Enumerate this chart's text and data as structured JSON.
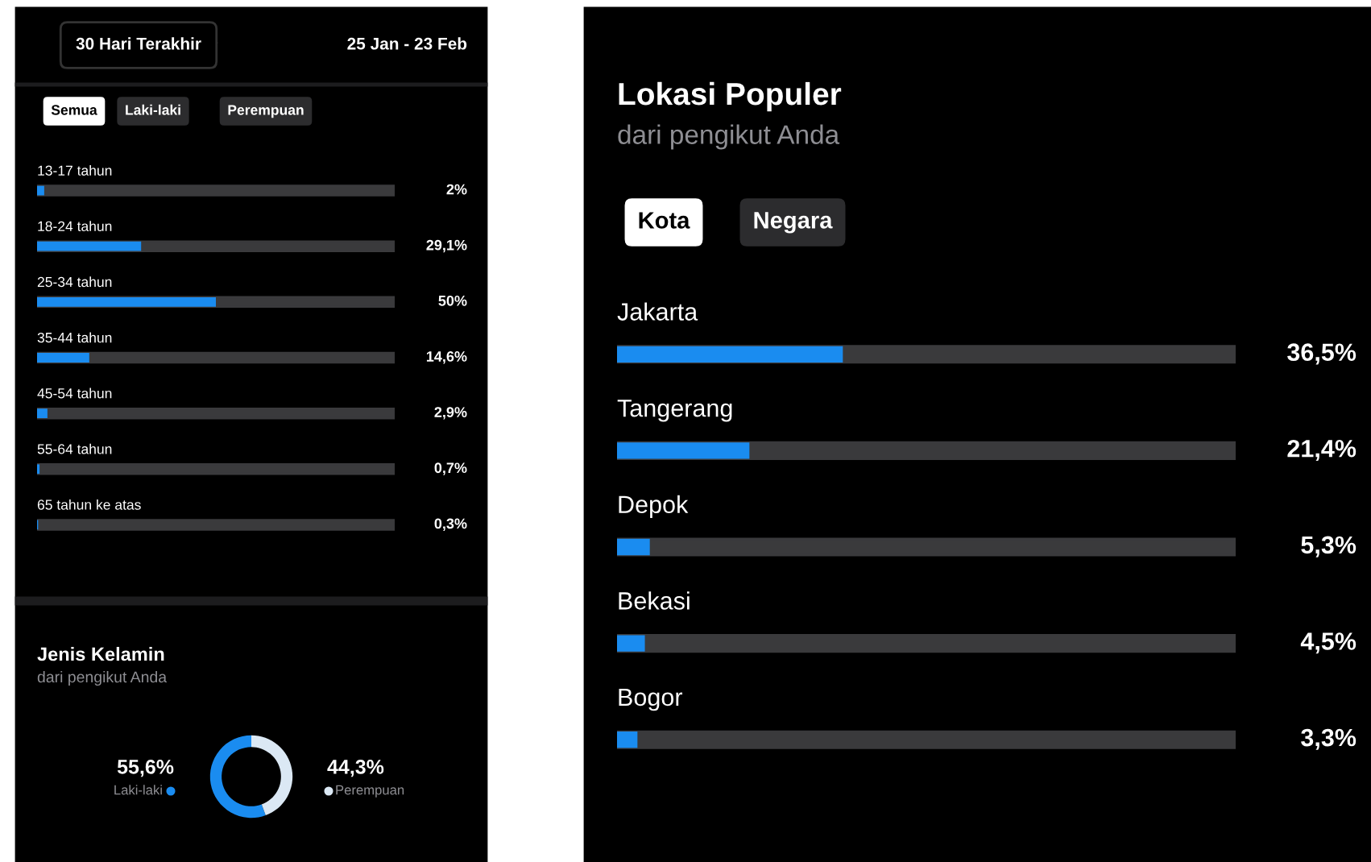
{
  "chart_data": [
    {
      "type": "bar",
      "orientation": "horizontal",
      "categories": [
        "13-17 tahun",
        "18-24 tahun",
        "25-34 tahun",
        "35-44 tahun",
        "45-54 tahun",
        "55-64 tahun",
        "65 tahun ke atas"
      ],
      "values": [
        2,
        29.1,
        50,
        14.6,
        2.9,
        0.7,
        0.3
      ],
      "value_labels": [
        "2%",
        "29,1%",
        "50%",
        "14,6%",
        "2,9%",
        "0,7%",
        "0,3%"
      ],
      "color": "#1a8cf0",
      "xlim": [
        0,
        100
      ],
      "tick_labels": false,
      "grid": false,
      "legend": false,
      "annotations": [
        "30 Hari Terakhir",
        "25 Jan - 23 Feb",
        "Semua",
        "Laki-laki",
        "Perempuan"
      ]
    },
    {
      "type": "donut",
      "title": "Jenis Kelamin",
      "subtitle": "dari pengikut Anda",
      "categories": [
        "Laki-laki",
        "Perempuan"
      ],
      "values": [
        55.6,
        44.3
      ],
      "value_labels": [
        "55,6%",
        "44,3%"
      ],
      "colors": [
        "#1a8cf0",
        "#dbe8f4"
      ]
    },
    {
      "type": "bar",
      "orientation": "horizontal",
      "title": "Lokasi Populer",
      "subtitle": "dari pengikut Anda",
      "categories": [
        "Jakarta",
        "Tangerang",
        "Depok",
        "Bekasi",
        "Bogor"
      ],
      "values": [
        36.5,
        21.4,
        5.3,
        4.5,
        3.3
      ],
      "value_labels": [
        "36,5%",
        "21,4%",
        "5,3%",
        "4,5%",
        "3,3%"
      ],
      "color": "#1a8cf0",
      "xlim": [
        0,
        100
      ],
      "tick_labels": false,
      "grid": false,
      "legend": false,
      "annotations": [
        "Kota",
        "Negara"
      ]
    }
  ]
}
